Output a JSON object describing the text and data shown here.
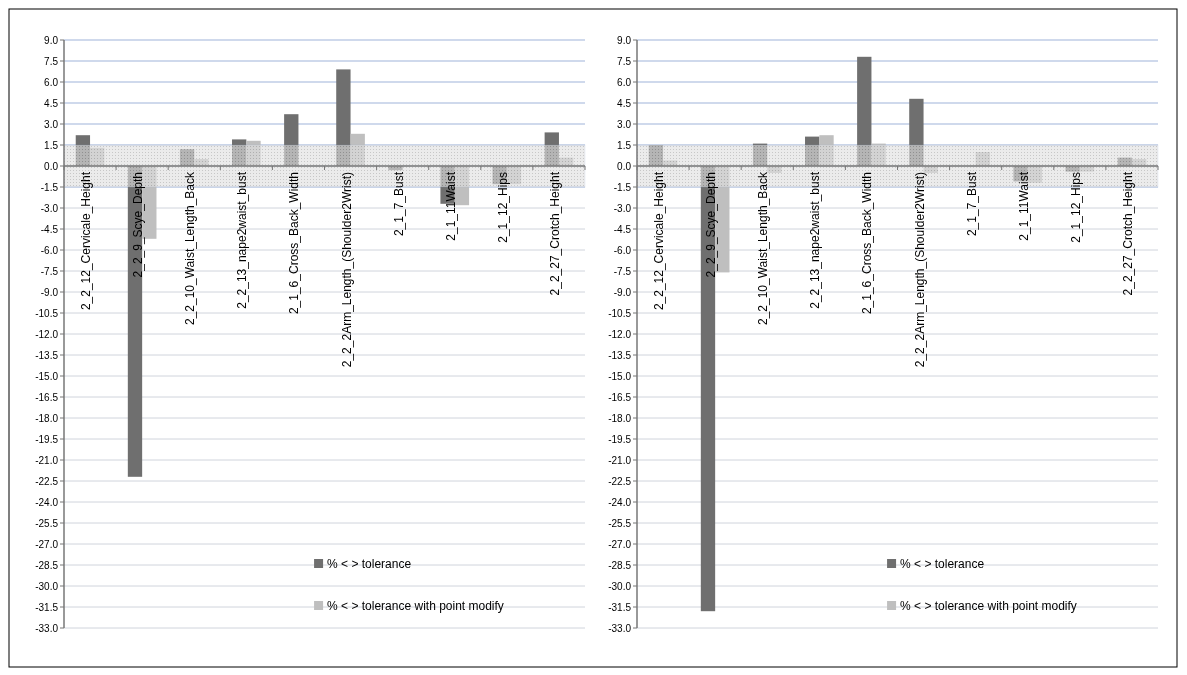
{
  "chart_data": [
    {
      "type": "bar",
      "categories": [
        "2_2_12_Cervicale_Height",
        "2_2_9_Scye_Depth",
        "2_2_10_Waist_Length_Back",
        "2_2_13_nape2waist_bust",
        "2_1_6_Cross_Back_Width",
        "2_2_2Arm_Length_(Shoulder2Wrist)",
        "2_1_7_Bust",
        "2_1_11Waist",
        "2_1_12_Hips",
        "2_2_27_Crotch_Height"
      ],
      "series": [
        {
          "name": "% < >  tolerance",
          "color": "#6f6f6f",
          "values": [
            2.2,
            -22.2,
            1.2,
            1.9,
            3.7,
            6.9,
            -0.3,
            -2.7,
            -1.3,
            2.4
          ]
        },
        {
          "name": "% < >  tolerance with point modify",
          "color": "#bfbfbf",
          "values": [
            1.3,
            -5.2,
            0.5,
            1.8,
            0,
            2.3,
            0,
            -2.8,
            -1.3,
            0.6
          ]
        }
      ],
      "ylim": [
        -33,
        9
      ],
      "yticks": [
        {
          "value": -33,
          "label": "-33.0"
        },
        {
          "value": -31.5,
          "label": "-31.5"
        },
        {
          "value": -30,
          "label": "-30.0"
        },
        {
          "value": -28.5,
          "label": "-28.5"
        },
        {
          "value": -27,
          "label": "-27.0"
        },
        {
          "value": -25.5,
          "label": "-25.5"
        },
        {
          "value": -24,
          "label": "-24.0"
        },
        {
          "value": -22.5,
          "label": "-22.5"
        },
        {
          "value": -21,
          "label": "-21.0"
        },
        {
          "value": -19.5,
          "label": "-19.5"
        },
        {
          "value": -18,
          "label": "-18.0"
        },
        {
          "value": -16.5,
          "label": "-16.5"
        },
        {
          "value": -15,
          "label": "-15.0"
        },
        {
          "value": -13.5,
          "label": "-13.5"
        },
        {
          "value": -12,
          "label": "-12.0"
        },
        {
          "value": -10.5,
          "label": "-10.5"
        },
        {
          "value": -9,
          "label": "-9.0"
        },
        {
          "value": -7.5,
          "label": "-7.5"
        },
        {
          "value": -6,
          "label": "-6.0"
        },
        {
          "value": -4.5,
          "label": "-4.5"
        },
        {
          "value": -3,
          "label": "-3.0"
        },
        {
          "value": -1.5,
          "label": "-1.5"
        },
        {
          "value": 0,
          "label": "0.0"
        },
        {
          "value": 1.5,
          "label": "1.5"
        },
        {
          "value": 3,
          "label": "3.0"
        },
        {
          "value": 4.5,
          "label": "4.5"
        },
        {
          "value": 6,
          "label": "6.0"
        },
        {
          "value": 7.5,
          "label": "7.5"
        },
        {
          "value": 9,
          "label": "9.0"
        }
      ],
      "grid": "y",
      "legend": "bottom right",
      "bands": [
        {
          "axis": "y",
          "from": -1.5,
          "to": 1.5,
          "color": "#c8c8c8"
        }
      ]
    },
    {
      "type": "bar",
      "categories": [
        "2_2_12_Cervicale_Height",
        "2_2_9_Scye_Depth",
        "2_2_10_Waist_Length_Back",
        "2_2_13_nape2waist_bust",
        "2_1_6_Cross_Back_Width",
        "2_2_2Arm_Length_(Shoulder2Wrist)",
        "2_1_7_Bust",
        "2_1_11Waist",
        "2_1_12_Hips",
        "2_2_27_Crotch_Height"
      ],
      "series": [
        {
          "name": "% < >  tolerance",
          "color": "#6f6f6f",
          "values": [
            1.5,
            -31.8,
            1.6,
            2.1,
            7.8,
            4.8,
            0,
            -1.1,
            -0.4,
            0.6
          ]
        },
        {
          "name": "% < >  tolerance with point modify",
          "color": "#bfbfbf",
          "values": [
            0.4,
            -7.6,
            -0.5,
            2.2,
            1.6,
            -0.5,
            1.0,
            -1.2,
            -0.4,
            0.5
          ]
        }
      ],
      "ylim": [
        -33,
        9
      ],
      "yticks": [
        {
          "value": -33,
          "label": "-33.0"
        },
        {
          "value": -31.5,
          "label": "-31.5"
        },
        {
          "value": -30,
          "label": "-30.0"
        },
        {
          "value": -28.5,
          "label": "-28.5"
        },
        {
          "value": -27,
          "label": "-27.0"
        },
        {
          "value": -25.5,
          "label": "-25.5"
        },
        {
          "value": -24,
          "label": "-24.0"
        },
        {
          "value": -22.5,
          "label": "-22.5"
        },
        {
          "value": -21,
          "label": "-21.0"
        },
        {
          "value": -19.5,
          "label": "-19.5"
        },
        {
          "value": -18,
          "label": "-18.0"
        },
        {
          "value": -16.5,
          "label": "-16.5"
        },
        {
          "value": -15,
          "label": "-15.0"
        },
        {
          "value": -13.5,
          "label": "-13.5"
        },
        {
          "value": -12,
          "label": "-12.0"
        },
        {
          "value": -10.5,
          "label": "-10.5"
        },
        {
          "value": -9,
          "label": "-9.0"
        },
        {
          "value": -7.5,
          "label": "-7.5"
        },
        {
          "value": -6,
          "label": "-6.0"
        },
        {
          "value": -4.5,
          "label": "-4.5"
        },
        {
          "value": -3,
          "label": "-3.0"
        },
        {
          "value": -1.5,
          "label": "-1.5"
        },
        {
          "value": 0,
          "label": "0.0"
        },
        {
          "value": 1.5,
          "label": "1.5"
        },
        {
          "value": 3,
          "label": "3.0"
        },
        {
          "value": 4.5,
          "label": "4.5"
        },
        {
          "value": 6,
          "label": "6.0"
        },
        {
          "value": 7.5,
          "label": "7.5"
        },
        {
          "value": 9,
          "label": "9.0"
        }
      ],
      "grid": "y",
      "legend": "bottom right",
      "bands": [
        {
          "axis": "y",
          "from": -1.5,
          "to": 1.5,
          "color": "#c8c8c8"
        }
      ]
    }
  ]
}
